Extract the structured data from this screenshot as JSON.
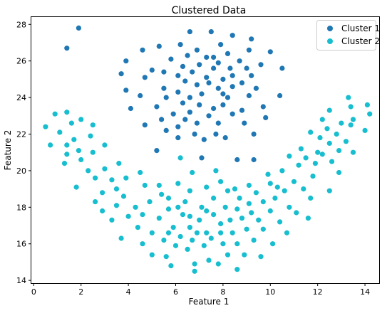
{
  "chart_data": {
    "type": "scatter",
    "title": "Clustered Data",
    "xlabel": "Feature 1",
    "ylabel": "Feature 2",
    "xlim": [
      -0.1,
      14.6
    ],
    "ylim": [
      13.85,
      28.4
    ],
    "xticks": [
      0,
      2,
      4,
      6,
      8,
      10,
      12,
      14
    ],
    "yticks": [
      14,
      16,
      18,
      20,
      22,
      24,
      26,
      28
    ],
    "grid": false,
    "legend_position": "top-right",
    "series": [
      {
        "name": "Cluster 1",
        "color": "#1f77b4",
        "points": [
          [
            1.4,
            26.7
          ],
          [
            1.9,
            27.8
          ],
          [
            3.7,
            25.3
          ],
          [
            3.9,
            26.0
          ],
          [
            3.9,
            24.4
          ],
          [
            4.1,
            23.4
          ],
          [
            4.6,
            26.6
          ],
          [
            4.5,
            24.1
          ],
          [
            4.7,
            25.1
          ],
          [
            4.7,
            22.5
          ],
          [
            5.0,
            25.5
          ],
          [
            5.3,
            26.8
          ],
          [
            5.2,
            23.5
          ],
          [
            5.2,
            21.1
          ],
          [
            5.4,
            22.8
          ],
          [
            5.5,
            24.5
          ],
          [
            5.5,
            25.4
          ],
          [
            5.6,
            24.0
          ],
          [
            5.6,
            22.2
          ],
          [
            5.8,
            26.1
          ],
          [
            5.9,
            23.1
          ],
          [
            6.1,
            25.2
          ],
          [
            6.1,
            24.3
          ],
          [
            6.1,
            22.4
          ],
          [
            6.1,
            21.8
          ],
          [
            6.2,
            26.9
          ],
          [
            6.3,
            25.7
          ],
          [
            6.3,
            23.7
          ],
          [
            6.4,
            24.9
          ],
          [
            6.4,
            22.8
          ],
          [
            6.5,
            26.3
          ],
          [
            6.6,
            27.6
          ],
          [
            6.6,
            24.0
          ],
          [
            6.6,
            23.2
          ],
          [
            6.7,
            25.4
          ],
          [
            6.8,
            22.0
          ],
          [
            6.9,
            26.6
          ],
          [
            6.9,
            24.7
          ],
          [
            6.9,
            22.6
          ],
          [
            7.0,
            25.8
          ],
          [
            7.0,
            23.6
          ],
          [
            7.1,
            24.2
          ],
          [
            7.1,
            20.7
          ],
          [
            7.2,
            21.7
          ],
          [
            7.3,
            26.2
          ],
          [
            7.3,
            25.1
          ],
          [
            7.4,
            23.0
          ],
          [
            7.4,
            24.8
          ],
          [
            7.5,
            27.6
          ],
          [
            7.6,
            26.2
          ],
          [
            7.6,
            25.6
          ],
          [
            7.6,
            23.4
          ],
          [
            7.7,
            22.0
          ],
          [
            7.8,
            24.5
          ],
          [
            7.8,
            25.9
          ],
          [
            7.8,
            22.6
          ],
          [
            7.9,
            26.9
          ],
          [
            8.0,
            25.0
          ],
          [
            8.0,
            24.2
          ],
          [
            8.0,
            23.6
          ],
          [
            8.1,
            21.8
          ],
          [
            8.2,
            26.4
          ],
          [
            8.2,
            24.0
          ],
          [
            8.3,
            25.6
          ],
          [
            8.4,
            27.4
          ],
          [
            8.4,
            25.2
          ],
          [
            8.4,
            24.6
          ],
          [
            8.4,
            23.1
          ],
          [
            8.6,
            20.6
          ],
          [
            8.7,
            26.0
          ],
          [
            8.8,
            24.8
          ],
          [
            8.8,
            23.3
          ],
          [
            8.9,
            22.6
          ],
          [
            9.0,
            25.6
          ],
          [
            9.1,
            26.6
          ],
          [
            9.1,
            24.1
          ],
          [
            9.2,
            27.2
          ],
          [
            9.2,
            25.2
          ],
          [
            9.3,
            22.0
          ],
          [
            9.3,
            20.6
          ],
          [
            9.4,
            24.5
          ],
          [
            9.6,
            25.8
          ],
          [
            9.7,
            23.5
          ],
          [
            9.8,
            22.9
          ],
          [
            10.0,
            26.5
          ],
          [
            10.4,
            24.1
          ],
          [
            10.5,
            25.6
          ]
        ]
      },
      {
        "name": "Cluster 2",
        "color": "#17becf",
        "points": [
          [
            0.5,
            22.4
          ],
          [
            0.7,
            21.4
          ],
          [
            0.9,
            23.1
          ],
          [
            1.1,
            22.1
          ],
          [
            1.3,
            20.4
          ],
          [
            1.4,
            20.9
          ],
          [
            1.4,
            21.4
          ],
          [
            1.4,
            23.2
          ],
          [
            1.6,
            22.6
          ],
          [
            1.7,
            21.7
          ],
          [
            1.8,
            19.1
          ],
          [
            1.9,
            21.1
          ],
          [
            2.0,
            22.8
          ],
          [
            2.0,
            20.6
          ],
          [
            2.3,
            20.0
          ],
          [
            2.4,
            21.9
          ],
          [
            2.5,
            22.5
          ],
          [
            2.5,
            21.0
          ],
          [
            2.6,
            19.6
          ],
          [
            2.6,
            18.3
          ],
          [
            2.9,
            18.8
          ],
          [
            2.9,
            17.8
          ],
          [
            3.0,
            21.4
          ],
          [
            3.0,
            20.1
          ],
          [
            3.3,
            19.5
          ],
          [
            3.3,
            17.3
          ],
          [
            3.5,
            19.0
          ],
          [
            3.5,
            18.1
          ],
          [
            3.6,
            20.4
          ],
          [
            3.7,
            16.3
          ],
          [
            3.8,
            18.6
          ],
          [
            3.9,
            19.6
          ],
          [
            4.0,
            17.5
          ],
          [
            4.3,
            18.0
          ],
          [
            4.4,
            16.9
          ],
          [
            4.5,
            19.9
          ],
          [
            4.6,
            17.6
          ],
          [
            4.6,
            16.0
          ],
          [
            4.7,
            19.2
          ],
          [
            4.9,
            18.3
          ],
          [
            5.0,
            15.4
          ],
          [
            5.0,
            16.6
          ],
          [
            5.3,
            19.2
          ],
          [
            5.3,
            17.4
          ],
          [
            5.4,
            18.7
          ],
          [
            5.5,
            16.2
          ],
          [
            5.6,
            15.3
          ],
          [
            5.7,
            17.9
          ],
          [
            5.7,
            16.6
          ],
          [
            5.7,
            18.5
          ],
          [
            5.8,
            14.8
          ],
          [
            5.9,
            16.9
          ],
          [
            6.0,
            15.9
          ],
          [
            6.1,
            18.0
          ],
          [
            6.1,
            19.3
          ],
          [
            6.2,
            20.7
          ],
          [
            6.2,
            16.4
          ],
          [
            6.3,
            17.6
          ],
          [
            6.4,
            18.3
          ],
          [
            6.5,
            15.7
          ],
          [
            6.6,
            16.9
          ],
          [
            6.6,
            17.5
          ],
          [
            6.6,
            18.9
          ],
          [
            6.7,
            16.2
          ],
          [
            6.7,
            19.9
          ],
          [
            6.8,
            14.5
          ],
          [
            6.8,
            14.9
          ],
          [
            6.9,
            16.6
          ],
          [
            7.0,
            17.3
          ],
          [
            7.1,
            18.0
          ],
          [
            7.2,
            15.9
          ],
          [
            7.3,
            17.8
          ],
          [
            7.3,
            16.6
          ],
          [
            7.3,
            19.1
          ],
          [
            7.4,
            15.1
          ],
          [
            7.5,
            16.3
          ],
          [
            7.6,
            17.6
          ],
          [
            7.6,
            18.5
          ],
          [
            7.7,
            20.0
          ],
          [
            7.8,
            14.9
          ],
          [
            7.9,
            17.1
          ],
          [
            7.9,
            16.6
          ],
          [
            7.9,
            19.4
          ],
          [
            8.0,
            16.0
          ],
          [
            8.1,
            18.0
          ],
          [
            8.2,
            15.4
          ],
          [
            8.2,
            18.9
          ],
          [
            8.3,
            17.3
          ],
          [
            8.4,
            16.6
          ],
          [
            8.5,
            19.0
          ],
          [
            8.6,
            14.6
          ],
          [
            8.6,
            16.0
          ],
          [
            8.6,
            17.9
          ],
          [
            8.7,
            18.5
          ],
          [
            8.8,
            17.4
          ],
          [
            8.9,
            15.4
          ],
          [
            9.0,
            16.8
          ],
          [
            9.1,
            19.2
          ],
          [
            9.1,
            18.2
          ],
          [
            9.2,
            17.7
          ],
          [
            9.3,
            16.2
          ],
          [
            9.4,
            18.8
          ],
          [
            9.5,
            17.3
          ],
          [
            9.6,
            15.3
          ],
          [
            9.7,
            18.3
          ],
          [
            9.7,
            16.8
          ],
          [
            9.9,
            19.8
          ],
          [
            10.0,
            19.3
          ],
          [
            10.0,
            17.8
          ],
          [
            10.1,
            16.0
          ],
          [
            10.2,
            18.5
          ],
          [
            10.3,
            19.1
          ],
          [
            10.4,
            17.2
          ],
          [
            10.5,
            20.0
          ],
          [
            10.6,
            18.9
          ],
          [
            10.7,
            16.6
          ],
          [
            10.8,
            20.8
          ],
          [
            10.8,
            18.0
          ],
          [
            11.0,
            19.4
          ],
          [
            11.1,
            17.7
          ],
          [
            11.2,
            20.3
          ],
          [
            11.3,
            21.2
          ],
          [
            11.4,
            19.0
          ],
          [
            11.5,
            20.7
          ],
          [
            11.6,
            17.4
          ],
          [
            11.7,
            22.1
          ],
          [
            11.7,
            18.5
          ],
          [
            11.8,
            19.7
          ],
          [
            11.9,
            20.4
          ],
          [
            12.0,
            21.0
          ],
          [
            12.1,
            21.8
          ],
          [
            12.2,
            22.8
          ],
          [
            12.2,
            20.9
          ],
          [
            12.4,
            22.3
          ],
          [
            12.5,
            18.9
          ],
          [
            12.5,
            21.5
          ],
          [
            12.5,
            23.3
          ],
          [
            12.6,
            20.5
          ],
          [
            12.8,
            22.0
          ],
          [
            12.9,
            19.9
          ],
          [
            12.9,
            21.1
          ],
          [
            13.0,
            22.6
          ],
          [
            13.2,
            21.6
          ],
          [
            13.3,
            24.0
          ],
          [
            13.4,
            23.5
          ],
          [
            13.4,
            22.5
          ],
          [
            13.5,
            21.0
          ],
          [
            13.5,
            22.8
          ],
          [
            14.0,
            22.2
          ],
          [
            14.1,
            23.6
          ],
          [
            14.2,
            23.1
          ]
        ]
      }
    ]
  }
}
